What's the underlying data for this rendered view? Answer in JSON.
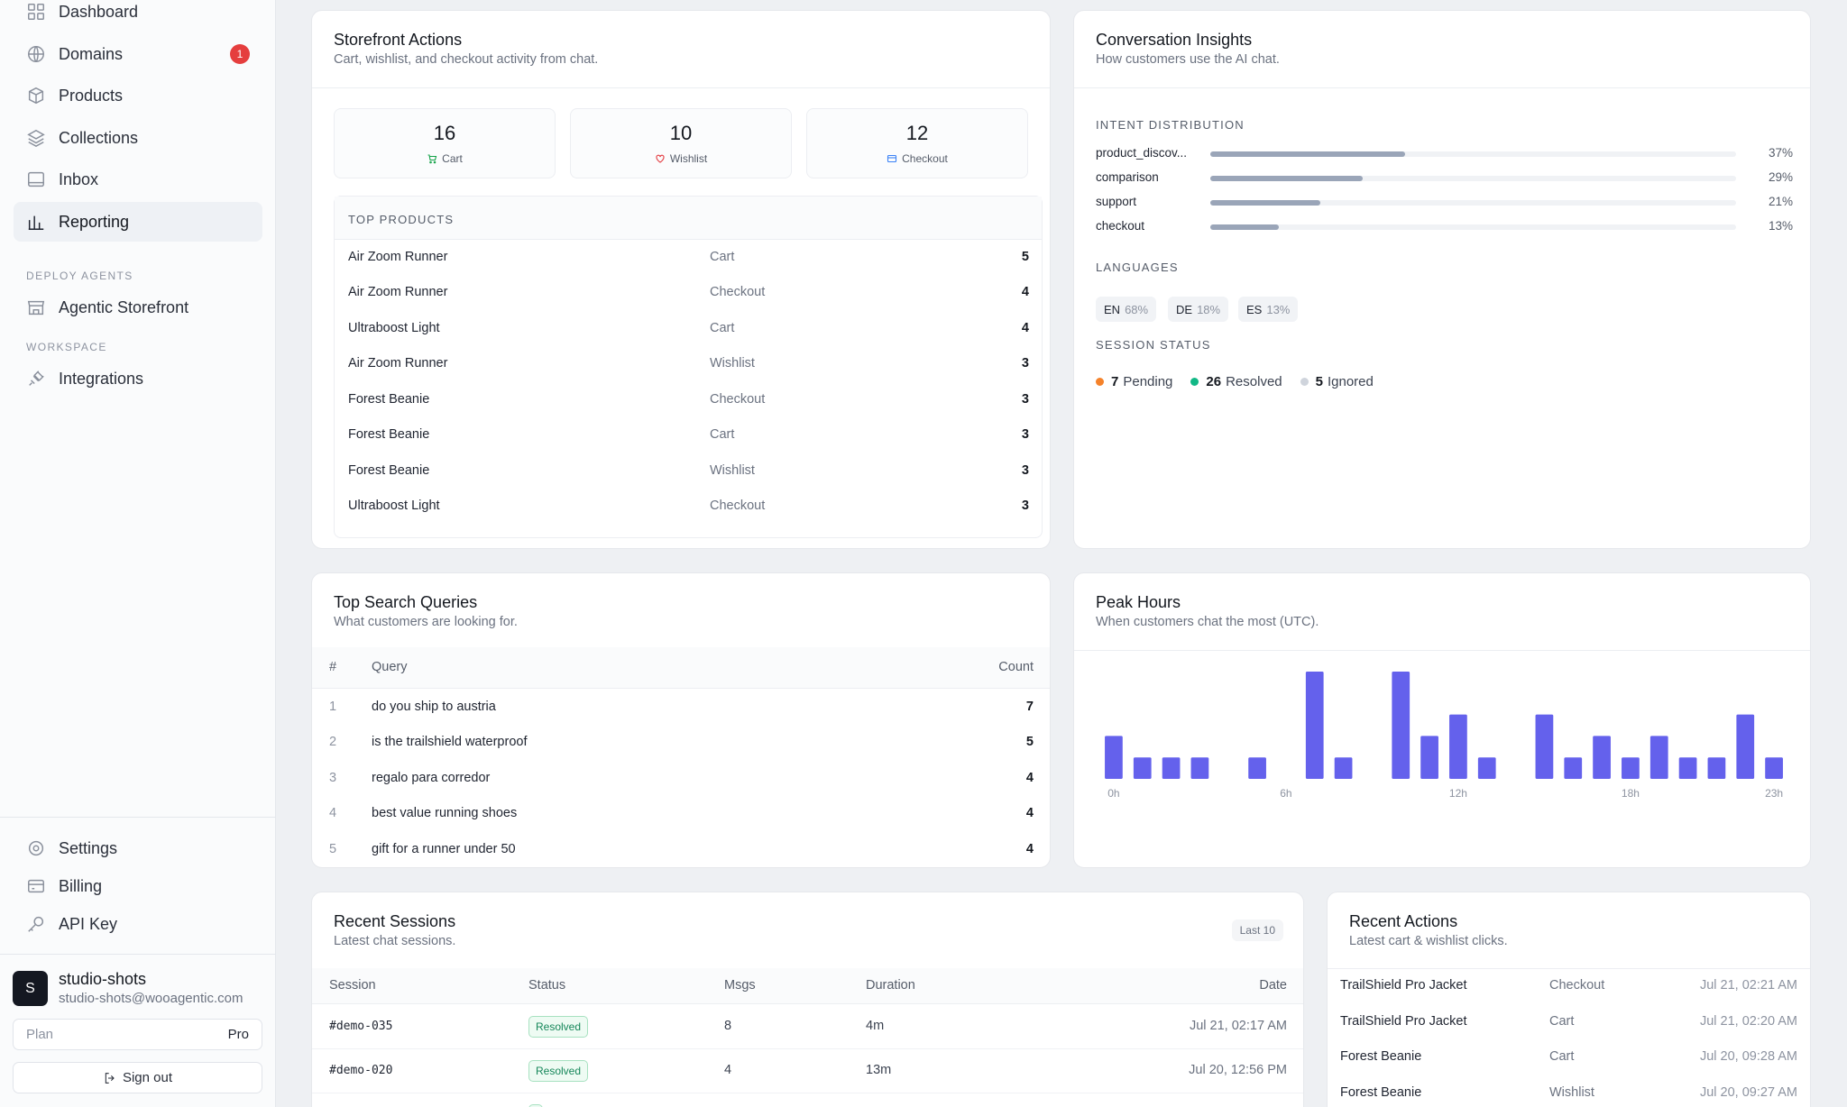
{
  "sidebar": {
    "nav": [
      {
        "label": "Dashboard",
        "icon": "grid-icon"
      },
      {
        "label": "Domains",
        "icon": "globe-icon",
        "badge": "1"
      },
      {
        "label": "Products",
        "icon": "box-icon"
      },
      {
        "label": "Collections",
        "icon": "layers-icon"
      },
      {
        "label": "Inbox",
        "icon": "inbox-icon"
      },
      {
        "label": "Reporting",
        "icon": "bar-chart-icon",
        "active": true
      }
    ],
    "deploy_label": "DEPLOY AGENTS",
    "deploy_items": [
      {
        "label": "Agentic Storefront",
        "icon": "store-icon"
      }
    ],
    "workspace_label": "WORKSPACE",
    "workspace_items": [
      {
        "label": "Integrations",
        "icon": "plug-icon"
      }
    ],
    "bottom": [
      {
        "label": "Settings",
        "icon": "gear-icon"
      },
      {
        "label": "Billing",
        "icon": "card-icon"
      },
      {
        "label": "API Key",
        "icon": "key-icon"
      }
    ],
    "user": {
      "initial": "S",
      "name": "studio-shots",
      "email": "studio-shots@wooagentic.com"
    },
    "plan": {
      "label": "Plan",
      "value": "Pro"
    },
    "signout": "Sign out"
  },
  "storefront": {
    "title": "Storefront Actions",
    "subtitle": "Cart, wishlist, and checkout activity from chat.",
    "stats": [
      {
        "value": "16",
        "label": "Cart",
        "icon": "cart-icon",
        "color": "#16a34a"
      },
      {
        "value": "10",
        "label": "Wishlist",
        "icon": "heart-icon",
        "color": "#e5484d"
      },
      {
        "value": "12",
        "label": "Checkout",
        "icon": "card-icon",
        "color": "#3b82f6"
      }
    ],
    "top_products_label": "TOP PRODUCTS",
    "top_products": [
      {
        "name": "Air Zoom Runner",
        "action": "Cart",
        "count": "5"
      },
      {
        "name": "Air Zoom Runner",
        "action": "Checkout",
        "count": "4"
      },
      {
        "name": "Ultraboost Light",
        "action": "Cart",
        "count": "4"
      },
      {
        "name": "Air Zoom Runner",
        "action": "Wishlist",
        "count": "3"
      },
      {
        "name": "Forest Beanie",
        "action": "Checkout",
        "count": "3"
      },
      {
        "name": "Forest Beanie",
        "action": "Cart",
        "count": "3"
      },
      {
        "name": "Forest Beanie",
        "action": "Wishlist",
        "count": "3"
      },
      {
        "name": "Ultraboost Light",
        "action": "Checkout",
        "count": "3"
      }
    ]
  },
  "insights": {
    "title": "Conversation Insights",
    "subtitle": "How customers use the AI chat.",
    "intent_label": "INTENT DISTRIBUTION",
    "intents": [
      {
        "name": "product_discov...",
        "pct": "37%",
        "value": 37
      },
      {
        "name": "comparison",
        "pct": "29%",
        "value": 29
      },
      {
        "name": "support",
        "pct": "21%",
        "value": 21
      },
      {
        "name": "checkout",
        "pct": "13%",
        "value": 13
      }
    ],
    "languages_label": "LANGUAGES",
    "languages": [
      {
        "code": "EN",
        "pct": "68%"
      },
      {
        "code": "DE",
        "pct": "18%"
      },
      {
        "code": "ES",
        "pct": "13%"
      }
    ],
    "status_label": "SESSION STATUS",
    "statuses": [
      {
        "count": "7",
        "label": "Pending",
        "color": "#f5822a"
      },
      {
        "count": "26",
        "label": "Resolved",
        "color": "#12b886"
      },
      {
        "count": "5",
        "label": "Ignored",
        "color": "#cfd4dc"
      }
    ]
  },
  "search": {
    "title": "Top Search Queries",
    "subtitle": "What customers are looking for.",
    "headers": {
      "index": "#",
      "query": "Query",
      "count": "Count"
    },
    "rows": [
      {
        "i": "1",
        "q": "do you ship to austria",
        "c": "7"
      },
      {
        "i": "2",
        "q": "is the trailshield waterproof",
        "c": "5"
      },
      {
        "i": "3",
        "q": "regalo para corredor",
        "c": "4"
      },
      {
        "i": "4",
        "q": "best value running shoes",
        "c": "4"
      },
      {
        "i": "5",
        "q": "gift for a runner under 50",
        "c": "4"
      }
    ]
  },
  "peak": {
    "title": "Peak Hours",
    "subtitle": "When customers chat the most (UTC).",
    "color": "#6461ec"
  },
  "chart_data": {
    "type": "bar",
    "title": "Peak Hours",
    "categories": [
      "0h",
      "1h",
      "2h",
      "3h",
      "4h",
      "5h",
      "6h",
      "7h",
      "8h",
      "9h",
      "10h",
      "11h",
      "12h",
      "13h",
      "14h",
      "15h",
      "16h",
      "17h",
      "18h",
      "19h",
      "20h",
      "21h",
      "22h",
      "23h"
    ],
    "tick_labels": [
      "0h",
      "6h",
      "12h",
      "18h",
      "23h"
    ],
    "values": [
      2,
      1,
      1,
      1,
      0,
      1,
      0,
      5,
      1,
      0,
      5,
      2,
      3,
      1,
      0,
      3,
      1,
      2,
      1,
      2,
      1,
      1,
      3,
      1
    ],
    "ylim": [
      0,
      5
    ]
  },
  "sessions": {
    "title": "Recent Sessions",
    "subtitle": "Latest chat sessions.",
    "pill": "Last 10",
    "headers": {
      "session": "Session",
      "status": "Status",
      "msgs": "Msgs",
      "duration": "Duration",
      "date": "Date"
    },
    "rows": [
      {
        "id": "#demo-035",
        "status": "Resolved",
        "msgs": "8",
        "duration": "4m",
        "date": "Jul 21, 02:17 AM"
      },
      {
        "id": "#demo-020",
        "status": "Resolved",
        "msgs": "4",
        "duration": "13m",
        "date": "Jul 20, 12:56 PM"
      }
    ]
  },
  "actions": {
    "title": "Recent Actions",
    "subtitle": "Latest cart & wishlist clicks.",
    "rows": [
      {
        "product": "TrailShield Pro Jacket",
        "action": "Checkout",
        "date": "Jul 21, 02:21 AM"
      },
      {
        "product": "TrailShield Pro Jacket",
        "action": "Cart",
        "date": "Jul 21, 02:20 AM"
      },
      {
        "product": "Forest Beanie",
        "action": "Cart",
        "date": "Jul 20, 09:28 AM"
      },
      {
        "product": "Forest Beanie",
        "action": "Wishlist",
        "date": "Jul 20, 09:27 AM"
      }
    ]
  }
}
